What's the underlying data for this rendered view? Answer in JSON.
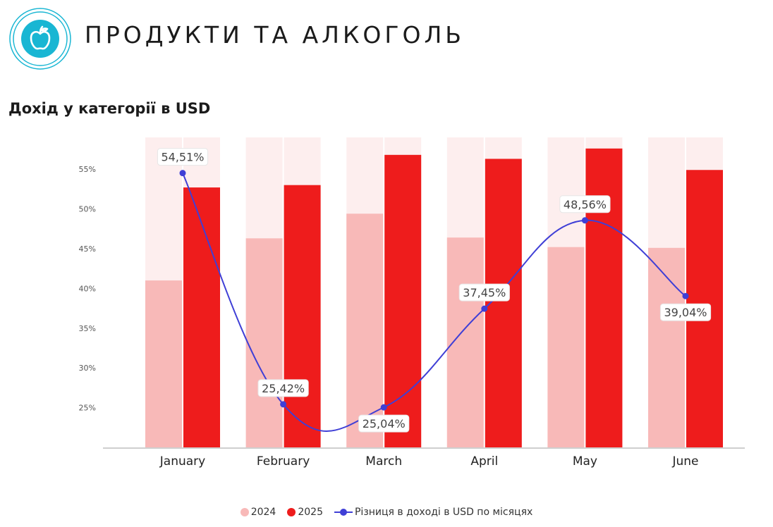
{
  "header": {
    "title": "ПРОДУКТИ ТА АЛКОГОЛЬ",
    "icon": "apple-icon"
  },
  "colors": {
    "accent": "#19b6d3",
    "bar_2024": "#f8b9b8",
    "bar_2025": "#ee1c1c",
    "bar_track": "#fdeeee",
    "line": "#3f3fd6"
  },
  "chart_data": {
    "type": "bar",
    "title": "Дохід у категорії в USD",
    "categories": [
      "January",
      "February",
      "March",
      "April",
      "May",
      "June"
    ],
    "series": [
      {
        "name": "2024",
        "type": "bar",
        "values": [
          41.0,
          46.3,
          49.4,
          46.4,
          45.2,
          45.1
        ]
      },
      {
        "name": "2025",
        "type": "bar",
        "values": [
          52.7,
          53.0,
          56.8,
          56.3,
          57.6,
          54.9
        ]
      },
      {
        "name": "Різниця в доході в USD по місяцях",
        "type": "line",
        "values": [
          54.51,
          25.42,
          25.04,
          37.45,
          48.56,
          39.04
        ],
        "labels": [
          "54,51%",
          "25,42%",
          "25,04%",
          "37,45%",
          "48,56%",
          "39,04%"
        ]
      }
    ],
    "y_ticks": [
      "25%",
      "30%",
      "35%",
      "40%",
      "45%",
      "50%",
      "55%"
    ],
    "ylim": [
      20,
      59
    ],
    "grid": false,
    "legend": "bottom-center"
  }
}
